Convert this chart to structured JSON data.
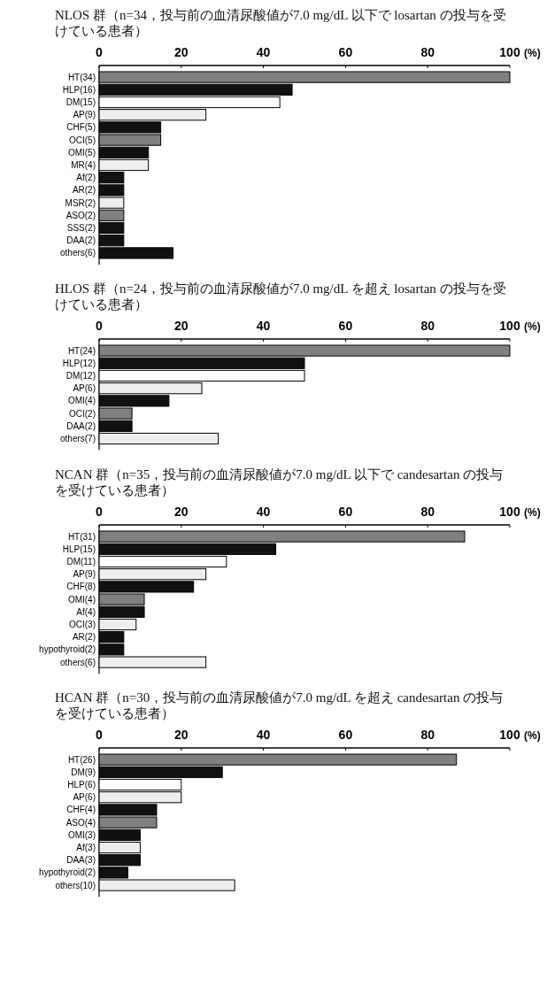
{
  "chart_data": [
    {
      "type": "bar",
      "orientation": "horizontal",
      "title": "NLOS 群（n=34，投与前の血清尿酸値が7.0 mg/dL 以下で losartan の投与を受けている患者）",
      "xlabel": "(%)",
      "xlim": [
        0,
        100
      ],
      "xticks": [
        0,
        20,
        40,
        60,
        80,
        100
      ],
      "categories": [
        "HT(34)",
        "HLP(16)",
        "DM(15)",
        "AP(9)",
        "CHF(5)",
        "OCI(5)",
        "OMI(5)",
        "MR(4)",
        "Af(2)",
        "AR(2)",
        "MSR(2)",
        "ASO(2)",
        "SSS(2)",
        "DAA(2)",
        "others(6)"
      ],
      "values": [
        100,
        47,
        44,
        26,
        15,
        15,
        12,
        12,
        6,
        6,
        6,
        6,
        6,
        6,
        18
      ],
      "colors": [
        "#808080",
        "#111111",
        "#ffffff",
        "#eeeeee",
        "#111111",
        "#808080",
        "#111111",
        "#eeeeee",
        "#111111",
        "#111111",
        "#eeeeee",
        "#808080",
        "#111111",
        "#111111",
        "#111111"
      ]
    },
    {
      "type": "bar",
      "orientation": "horizontal",
      "title": "HLOS 群（n=24，投与前の血清尿酸値が7.0 mg/dL を超え losartan の投与を受けている患者）",
      "xlabel": "(%)",
      "xlim": [
        0,
        100
      ],
      "xticks": [
        0,
        20,
        40,
        60,
        80,
        100
      ],
      "categories": [
        "HT(24)",
        "HLP(12)",
        "DM(12)",
        "AP(6)",
        "OMI(4)",
        "OCI(2)",
        "DAA(2)",
        "others(7)"
      ],
      "values": [
        100,
        50,
        50,
        25,
        17,
        8,
        8,
        29
      ],
      "colors": [
        "#808080",
        "#111111",
        "#ffffff",
        "#eeeeee",
        "#111111",
        "#808080",
        "#111111",
        "#eeeeee"
      ]
    },
    {
      "type": "bar",
      "orientation": "horizontal",
      "title": "NCAN 群（n=35，投与前の血清尿酸値が7.0 mg/dL 以下で candesartan の投与を受けている患者）",
      "xlabel": "(%)",
      "xlim": [
        0,
        100
      ],
      "xticks": [
        0,
        20,
        40,
        60,
        80,
        100
      ],
      "categories": [
        "HT(31)",
        "HLP(15)",
        "DM(11)",
        "AP(9)",
        "CHF(8)",
        "OMI(4)",
        "Af(4)",
        "OCI(3)",
        "AR(2)",
        "hypothyroid(2)",
        "others(6)"
      ],
      "values": [
        89,
        43,
        31,
        26,
        23,
        11,
        11,
        9,
        6,
        6,
        26
      ],
      "colors": [
        "#808080",
        "#111111",
        "#ffffff",
        "#eeeeee",
        "#111111",
        "#808080",
        "#111111",
        "#eeeeee",
        "#111111",
        "#111111",
        "#eeeeee"
      ]
    },
    {
      "type": "bar",
      "orientation": "horizontal",
      "title": "HCAN 群（n=30，投与前の血清尿酸値が7.0 mg/dL を超え candesartan の投与を受けている患者）",
      "xlabel": "(%)",
      "xlim": [
        0,
        100
      ],
      "xticks": [
        0,
        20,
        40,
        60,
        80,
        100
      ],
      "categories": [
        "HT(26)",
        "DM(9)",
        "HLP(6)",
        "AP(6)",
        "CHF(4)",
        "ASO(4)",
        "OMI(3)",
        "Af(3)",
        "DAA(3)",
        "hypothyroid(2)",
        "others(10)"
      ],
      "values": [
        87,
        30,
        20,
        20,
        14,
        14,
        10,
        10,
        10,
        7,
        33
      ],
      "colors": [
        "#808080",
        "#111111",
        "#ffffff",
        "#eeeeee",
        "#111111",
        "#808080",
        "#111111",
        "#eeeeee",
        "#111111",
        "#111111",
        "#eeeeee"
      ]
    }
  ]
}
